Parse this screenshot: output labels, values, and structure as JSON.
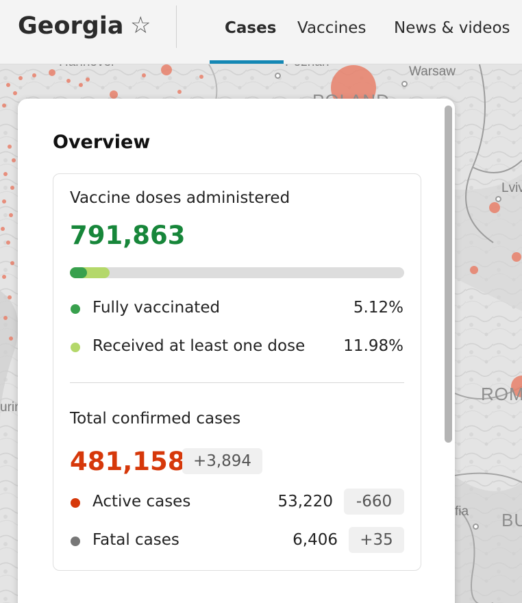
{
  "header": {
    "region_title": "Georgia",
    "tabs": [
      {
        "label": "Cases",
        "active": true
      },
      {
        "label": "Vaccines",
        "active": false
      },
      {
        "label": "News & videos",
        "active": false
      }
    ],
    "accent_color": "#1487b4"
  },
  "map": {
    "labels": [
      "Hannover",
      "Poznań",
      "Warsaw",
      "POLAND",
      "Lviv",
      "ROM",
      "fia",
      "BU",
      "urin"
    ]
  },
  "overview": {
    "title": "Overview",
    "vaccines": {
      "title": "Vaccine doses administered",
      "total": "791,863",
      "fully_vaccinated_pct": 5.12,
      "at_least_one_pct": 11.98,
      "rows": [
        {
          "label": "Fully vaccinated",
          "value": "5.12%",
          "color": "#38a04d"
        },
        {
          "label": "Received at least one dose",
          "value": "11.98%",
          "color": "#b4d86a"
        }
      ]
    },
    "cases": {
      "title": "Total confirmed cases",
      "total": "481,158",
      "total_delta": "+3,894",
      "rows": [
        {
          "label": "Active cases",
          "value": "53,220",
          "delta": "-660",
          "color": "#d6380a"
        },
        {
          "label": "Fatal cases",
          "value": "6,406",
          "delta": "+35",
          "color": "#777777"
        }
      ]
    }
  }
}
